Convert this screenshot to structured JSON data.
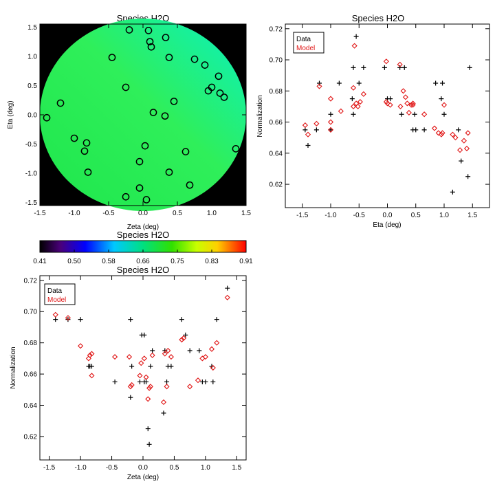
{
  "chart_data": [
    {
      "type": "heatmap",
      "title": "Species H2O",
      "xlabel": "Zeta (deg)",
      "ylabel": "Eta (deg)",
      "xlim": [
        -1.5,
        1.5
      ],
      "ylim": [
        -1.55,
        1.55
      ],
      "x_ticks": [
        "-1.5",
        "-1.0",
        "-0.5",
        "0.0",
        "0.5",
        "1.0",
        "1.5"
      ],
      "y_ticks": [
        "-1.5",
        "-1.0",
        "-0.5",
        "0.0",
        "0.5",
        "1.0",
        "1.5"
      ],
      "background_color": "#000000",
      "field": {
        "shape": "circle",
        "radius": 1.5,
        "value_min": 0.655,
        "value_max": 0.685
      },
      "points": [
        {
          "x": -1.4,
          "y": -0.05
        },
        {
          "x": -1.2,
          "y": 0.2
        },
        {
          "x": -1.0,
          "y": -0.4
        },
        {
          "x": -0.82,
          "y": -0.48
        },
        {
          "x": -0.85,
          "y": -0.62
        },
        {
          "x": -0.8,
          "y": -0.98
        },
        {
          "x": -0.45,
          "y": 0.98
        },
        {
          "x": -0.25,
          "y": 0.47
        },
        {
          "x": -0.2,
          "y": 1.45
        },
        {
          "x": -0.25,
          "y": -1.4
        },
        {
          "x": -0.05,
          "y": -0.8
        },
        {
          "x": -0.05,
          "y": -1.25
        },
        {
          "x": 0.03,
          "y": -0.53
        },
        {
          "x": 0.05,
          "y": -1.45
        },
        {
          "x": 0.08,
          "y": 1.44
        },
        {
          "x": 0.1,
          "y": 1.25
        },
        {
          "x": 0.12,
          "y": 1.16
        },
        {
          "x": 0.15,
          "y": 0.04
        },
        {
          "x": 0.33,
          "y": 1.32
        },
        {
          "x": 0.32,
          "y": -0.02
        },
        {
          "x": 0.38,
          "y": 0.98
        },
        {
          "x": 0.38,
          "y": -0.98
        },
        {
          "x": 0.45,
          "y": 0.23
        },
        {
          "x": 0.62,
          "y": -0.63
        },
        {
          "x": 0.68,
          "y": -1.2
        },
        {
          "x": 0.75,
          "y": 0.95
        },
        {
          "x": 0.9,
          "y": 0.85
        },
        {
          "x": 0.95,
          "y": 0.41
        },
        {
          "x": 1.0,
          "y": 0.47
        },
        {
          "x": 1.1,
          "y": 0.66
        },
        {
          "x": 1.12,
          "y": 0.37
        },
        {
          "x": 1.18,
          "y": 0.3
        },
        {
          "x": 1.35,
          "y": -0.58
        }
      ]
    },
    {
      "type": "scatter",
      "xlabel": "Eta (deg)",
      "ylabel": "Normalization",
      "xlim": [
        -1.8,
        1.8
      ],
      "ylim": [
        0.605,
        0.723
      ],
      "x_ticks": [
        "-1.5",
        "-1.0",
        "-0.5",
        "0.0",
        "0.5",
        "1.0",
        "1.5"
      ],
      "y_ticks": [
        "0.62",
        "0.64",
        "0.66",
        "0.68",
        "0.70",
        "0.72"
      ],
      "legend": [
        "Data",
        "Model"
      ],
      "legend_position": "top-left",
      "series": [
        {
          "name": "Data",
          "marker": "plus",
          "color": "#000000",
          "x": [
            -1.45,
            -1.4,
            -1.25,
            -1.2,
            -1.0,
            -1.0,
            -0.85,
            -0.62,
            -0.6,
            -0.6,
            -0.55,
            -0.5,
            -0.42,
            -0.05,
            0.0,
            0.05,
            0.22,
            0.25,
            0.3,
            0.45,
            0.48,
            0.5,
            0.65,
            0.85,
            0.95,
            0.97,
            1.0,
            1.15,
            1.25,
            1.3,
            1.42,
            1.45
          ],
          "y": [
            0.655,
            0.645,
            0.655,
            0.685,
            0.665,
            0.655,
            0.685,
            0.675,
            0.665,
            0.695,
            0.715,
            0.685,
            0.695,
            0.695,
            0.675,
            0.675,
            0.695,
            0.665,
            0.695,
            0.655,
            0.665,
            0.655,
            0.655,
            0.685,
            0.675,
            0.685,
            0.665,
            0.615,
            0.655,
            0.635,
            0.625,
            0.695
          ]
        },
        {
          "name": "Model",
          "marker": "diamond",
          "color": "#e01414",
          "x": [
            -1.45,
            -1.4,
            -1.25,
            -1.2,
            -1.0,
            -1.0,
            -1.0,
            -0.82,
            -0.6,
            -0.6,
            -0.58,
            -0.55,
            -0.52,
            -0.48,
            -0.42,
            -0.02,
            -0.02,
            0.0,
            0.05,
            0.22,
            0.23,
            0.28,
            0.32,
            0.35,
            0.38,
            0.42,
            0.45,
            0.45,
            0.65,
            0.83,
            0.9,
            0.95,
            0.97,
            1.0,
            1.15,
            1.2,
            1.28,
            1.35,
            1.4,
            1.42
          ],
          "y": [
            0.658,
            0.652,
            0.659,
            0.683,
            0.675,
            0.66,
            0.655,
            0.667,
            0.682,
            0.67,
            0.709,
            0.672,
            0.67,
            0.673,
            0.678,
            0.699,
            0.673,
            0.672,
            0.671,
            0.697,
            0.67,
            0.68,
            0.676,
            0.672,
            0.666,
            0.671,
            0.672,
            0.671,
            0.665,
            0.656,
            0.653,
            0.652,
            0.653,
            0.671,
            0.652,
            0.65,
            0.642,
            0.648,
            0.643,
            0.653
          ]
        }
      ]
    },
    {
      "type": "heatmap",
      "title": "Species H2O",
      "colorbar_ticks": [
        "0.41",
        "0.50",
        "0.58",
        "0.66",
        "0.75",
        "0.83",
        "0.91"
      ],
      "value_range": [
        0.41,
        0.91
      ]
    },
    {
      "type": "scatter",
      "title": "Species H2O",
      "xlabel": "Zeta (deg)",
      "ylabel": "Normalization",
      "xlim": [
        -1.65,
        1.65
      ],
      "ylim": [
        0.605,
        0.723
      ],
      "x_ticks": [
        "-1.5",
        "-1.0",
        "-0.5",
        "0.0",
        "0.5",
        "1.0",
        "1.5"
      ],
      "y_ticks": [
        "0.62",
        "0.64",
        "0.66",
        "0.68",
        "0.70",
        "0.72"
      ],
      "legend": [
        "Data",
        "Model"
      ],
      "legend_position": "top-left",
      "series": [
        {
          "name": "Data",
          "marker": "plus",
          "color": "#000000",
          "x": [
            -1.4,
            -1.2,
            -1.0,
            -0.87,
            -0.85,
            -0.82,
            -0.45,
            -0.2,
            -0.18,
            -0.2,
            -0.05,
            -0.02,
            0.02,
            0.02,
            0.05,
            0.08,
            0.1,
            0.12,
            0.15,
            0.33,
            0.35,
            0.38,
            0.4,
            0.45,
            0.62,
            0.68,
            0.75,
            0.9,
            0.95,
            1.0,
            1.1,
            1.12,
            1.18,
            1.35
          ],
          "y": [
            0.695,
            0.695,
            0.695,
            0.665,
            0.665,
            0.665,
            0.655,
            0.695,
            0.665,
            0.645,
            0.655,
            0.685,
            0.655,
            0.685,
            0.655,
            0.625,
            0.615,
            0.665,
            0.675,
            0.635,
            0.675,
            0.655,
            0.665,
            0.665,
            0.695,
            0.685,
            0.675,
            0.675,
            0.655,
            0.655,
            0.665,
            0.655,
            0.695,
            0.715
          ]
        },
        {
          "name": "Model",
          "marker": "diamond",
          "color": "#e01414",
          "x": [
            -1.4,
            -1.2,
            -1.0,
            -0.87,
            -0.85,
            -0.82,
            -0.82,
            -0.45,
            -0.22,
            -0.2,
            -0.18,
            -0.05,
            -0.03,
            0.02,
            0.05,
            0.08,
            0.1,
            0.12,
            0.15,
            0.33,
            0.35,
            0.38,
            0.4,
            0.45,
            0.62,
            0.65,
            0.75,
            0.88,
            0.95,
            1.0,
            1.1,
            1.12,
            1.18,
            1.35
          ],
          "y": [
            0.698,
            0.696,
            0.678,
            0.67,
            0.672,
            0.673,
            0.659,
            0.671,
            0.671,
            0.652,
            0.653,
            0.659,
            0.667,
            0.67,
            0.658,
            0.644,
            0.651,
            0.652,
            0.672,
            0.642,
            0.673,
            0.652,
            0.675,
            0.671,
            0.682,
            0.683,
            0.652,
            0.656,
            0.67,
            0.671,
            0.676,
            0.664,
            0.68,
            0.709
          ]
        }
      ]
    }
  ]
}
